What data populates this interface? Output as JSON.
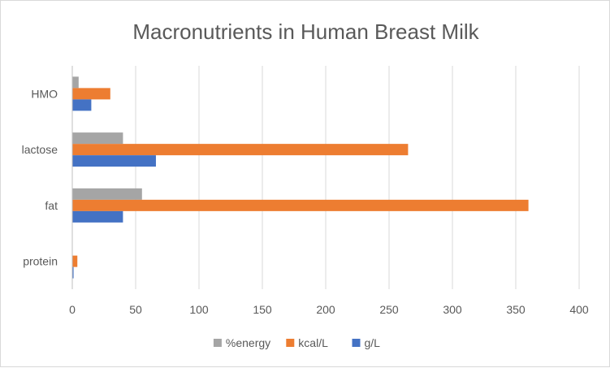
{
  "chart_data": {
    "type": "bar",
    "orientation": "horizontal",
    "title": "Macronutrients in Human Breast Milk",
    "categories": [
      "HMO",
      "lactose",
      "fat",
      "protein"
    ],
    "series": [
      {
        "name": "%energy",
        "color": "#a5a5a5",
        "values": [
          5,
          40,
          55,
          0
        ]
      },
      {
        "name": "kcal/L",
        "color": "#ed7d31",
        "values": [
          30,
          265,
          360,
          4
        ]
      },
      {
        "name": "g/L",
        "color": "#4472c4",
        "values": [
          15,
          66,
          40,
          1
        ]
      }
    ],
    "xlim": [
      0,
      400
    ],
    "xticks": [
      0,
      50,
      100,
      150,
      200,
      250,
      300,
      350,
      400
    ],
    "grid": "vertical",
    "legend": "bottom"
  }
}
